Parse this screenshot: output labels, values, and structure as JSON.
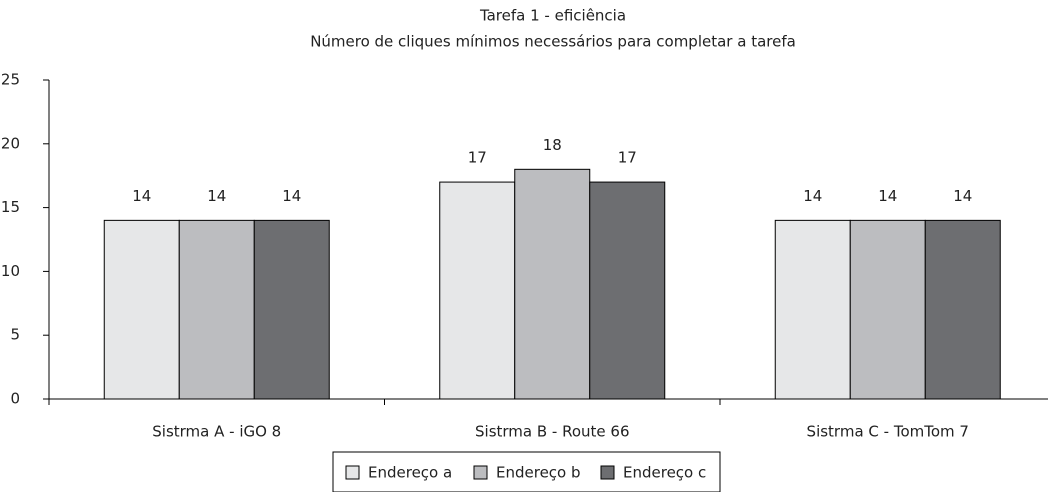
{
  "chart_data": {
    "type": "bar",
    "title": "Tarefa 1 - eficiência",
    "subtitle": "Número de cliques mínimos necessários para completar a tarefa",
    "categories": [
      "Sistrma A - iGO 8",
      "Sistrma B - Route 66",
      "Sistrma C - TomTom 7"
    ],
    "series": [
      {
        "name": "Endereço a",
        "color": "#e6e7e8",
        "values": [
          14,
          17,
          14
        ]
      },
      {
        "name": "Endereço b",
        "color": "#bcbdc0",
        "values": [
          14,
          18,
          14
        ]
      },
      {
        "name": "Endereço c",
        "color": "#6d6e71",
        "values": [
          14,
          17,
          14
        ]
      }
    ],
    "ylim": [
      0,
      25
    ],
    "yticks": [
      0,
      5,
      10,
      15,
      20,
      25
    ],
    "grid": false,
    "legend": "bottom"
  }
}
